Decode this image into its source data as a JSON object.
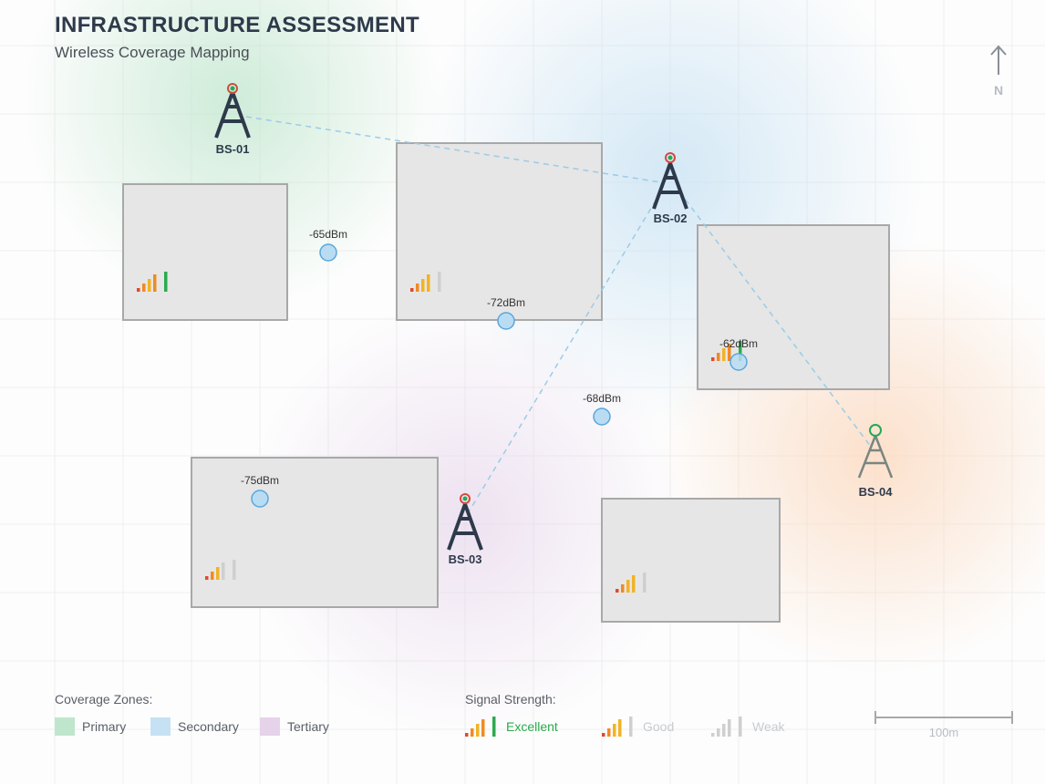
{
  "header": {
    "title": "INFRASTRUCTURE ASSESSMENT",
    "subtitle": "Wireless Coverage Mapping"
  },
  "compass": {
    "label": "N",
    "icon": "north-arrow-icon"
  },
  "colors": {
    "tower": "#2e3a4b",
    "tower_faded": "#7a8580",
    "tower_top": "#22aa55",
    "tower_top_ring": "#d44a3a",
    "link": "#9ccbe6",
    "building_fill": "#e6e6e6",
    "building_stroke": "#a8a8a8",
    "measure_fill": "#b9dcf3",
    "measure_stroke": "#5aa7dc",
    "primary": "#bfe6cd",
    "secondary": "#c6e1f3",
    "tertiary": "#e5d3ea",
    "zone_orange": "#fbd9bf",
    "bar_red": "#e04a2a",
    "bar_orange": "#f08a24",
    "bar_yellow": "#f2b324",
    "bar_green": "#2bab4e",
    "bar_gray": "#cfcfcf"
  },
  "base_stations": [
    {
      "id": "BS-01",
      "status": "active"
    },
    {
      "id": "BS-02",
      "status": "active"
    },
    {
      "id": "BS-03",
      "status": "active"
    },
    {
      "id": "BS-04",
      "status": "degraded"
    }
  ],
  "measurements": [
    {
      "label": "-65dBm"
    },
    {
      "label": "-72dBm"
    },
    {
      "label": "-62dBm"
    },
    {
      "label": "-68dBm"
    },
    {
      "label": "-75dBm"
    }
  ],
  "buildings": [
    {
      "name": "building-1",
      "signal_bars": 4
    },
    {
      "name": "building-2",
      "signal_bars": 3
    },
    {
      "name": "building-3",
      "signal_bars": 4
    },
    {
      "name": "building-4",
      "signal_bars": 2
    },
    {
      "name": "building-5",
      "signal_bars": 3
    }
  ],
  "legend": {
    "zones_title": "Coverage Zones:",
    "zones": [
      {
        "label": "Primary"
      },
      {
        "label": "Secondary"
      },
      {
        "label": "Tertiary"
      }
    ],
    "signal_title": "Signal Strength:",
    "signals": [
      {
        "label": "Excellent",
        "bars": 4,
        "color": "#2bab4e"
      },
      {
        "label": "Good",
        "bars": 3,
        "color": "#c8cbcf"
      },
      {
        "label": "Weak",
        "bars": 2,
        "color": "#c8cbcf"
      }
    ]
  },
  "scale": {
    "label": "100m"
  }
}
